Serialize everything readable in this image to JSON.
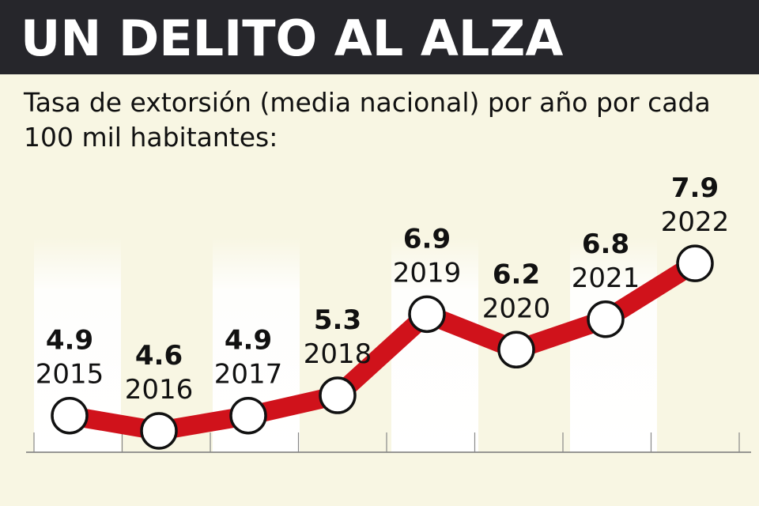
{
  "header": {
    "title": "UN DELITO AL ALZA"
  },
  "subtitle": "Tasa de extorsión (media nacional) por año por cada 100 mil habitantes:",
  "chart_data": {
    "type": "line",
    "title": "UN DELITO AL ALZA",
    "subtitle": "Tasa de extorsión (media nacional) por año por cada 100 mil habitantes:",
    "categories": [
      "2015",
      "2016",
      "2017",
      "2018",
      "2019",
      "2020",
      "2021",
      "2022"
    ],
    "values": [
      4.9,
      4.6,
      4.9,
      5.3,
      6.9,
      6.2,
      6.8,
      7.9
    ],
    "value_labels": [
      "4.9",
      "4.6",
      "4.9",
      "5.3",
      "6.9",
      "6.2",
      "6.8",
      "7.9"
    ],
    "line_color": "#d0121b",
    "marker_color": "#ffffff",
    "header_color": "#26262b",
    "background_color": "#f8f6e3",
    "grid": false
  }
}
